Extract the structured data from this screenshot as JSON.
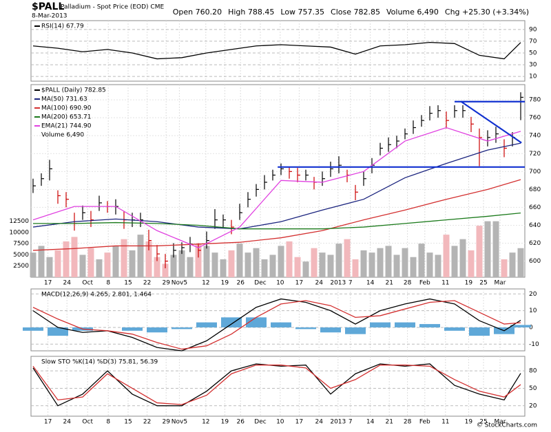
{
  "header": {
    "symbol": "$PALL",
    "name": "Palladium - Spot Price (EOD) CME",
    "date": "8-Mar-2013",
    "stats": [
      "Open 760.20",
      "High 788.45",
      "Low 757.35",
      "Close 782.85",
      "Volume 6,490",
      "Chg +25.30 (+3.34%)"
    ],
    "credit": "© StockCharts.com"
  },
  "xticks": [
    {
      "value": 1.8,
      "label": "17"
    },
    {
      "value": 4.1,
      "label": "24"
    },
    {
      "value": 6.6,
      "label": "Oct"
    },
    {
      "value": 9.1,
      "label": "8"
    },
    {
      "value": 11.5,
      "label": "15"
    },
    {
      "value": 13.8,
      "label": "22"
    },
    {
      "value": 16.1,
      "label": "29"
    },
    {
      "value": 17.7,
      "label": "Nov5"
    },
    {
      "value": 20.9,
      "label": "12"
    },
    {
      "value": 23.2,
      "label": "19"
    },
    {
      "value": 25.1,
      "label": "26"
    },
    {
      "value": 27.5,
      "label": "Dec"
    },
    {
      "value": 29.9,
      "label": "10"
    },
    {
      "value": 32.2,
      "label": "17"
    },
    {
      "value": 34.6,
      "label": "24"
    },
    {
      "value": 36.9,
      "label": "2013"
    },
    {
      "value": 38.4,
      "label": "7"
    },
    {
      "value": 40.8,
      "label": "14"
    },
    {
      "value": 43.1,
      "label": "21"
    },
    {
      "value": 45.3,
      "label": "28"
    },
    {
      "value": 47.4,
      "label": "Feb"
    },
    {
      "value": 49.9,
      "label": "11"
    },
    {
      "value": 52.7,
      "label": "19"
    },
    {
      "value": 54.5,
      "label": "25"
    },
    {
      "value": 56.5,
      "label": "Mar"
    }
  ],
  "chart_data": [
    {
      "type": "line",
      "ylim": [
        2,
        105
      ],
      "yticks": [
        90,
        70,
        50,
        30,
        10
      ],
      "series": [
        {
          "label": "RSI(14) 67.79",
          "color": "#000000",
          "x": [
            0,
            3,
            6,
            9,
            12,
            15,
            18,
            21,
            24,
            27,
            30,
            33,
            36,
            39,
            42,
            45,
            48,
            51,
            54,
            57,
            59
          ],
          "values": [
            62,
            58,
            52,
            56,
            50,
            40,
            42,
            50,
            56,
            62,
            64,
            62,
            60,
            48,
            62,
            64,
            68,
            66,
            46,
            40,
            67.79
          ]
        }
      ]
    },
    {
      "type": "ohlc",
      "ylim": [
        582,
        797
      ],
      "yticks": [
        600,
        620,
        640,
        660,
        680,
        700,
        720,
        740,
        760,
        780
      ],
      "y2lim": [
        0,
        43000
      ],
      "y2ticks": [
        2500,
        5000,
        7500,
        10000,
        12500
      ],
      "label": "$PALL (Daily) 782.85",
      "color": "#000000",
      "down_color": "#cc0000",
      "high": [
        692,
        698,
        713,
        679,
        677,
        654,
        662,
        656,
        673,
        667,
        669,
        656,
        654,
        654,
        635,
        618,
        608,
        620,
        621,
        627,
        620,
        633,
        658,
        652,
        646,
        664,
        677,
        686,
        696,
        702,
        709,
        705,
        704,
        702,
        694,
        700,
        711,
        717,
        702,
        685,
        700,
        715,
        732,
        738,
        740,
        748,
        757,
        763,
        773,
        774,
        767,
        774,
        774,
        761,
        748,
        746,
        750,
        736,
        744,
        788.45
      ],
      "low": [
        676,
        684,
        690,
        664,
        660,
        634,
        646,
        638,
        656,
        654,
        652,
        636,
        638,
        638,
        612,
        600,
        592,
        604,
        608,
        610,
        604,
        614,
        636,
        638,
        630,
        646,
        660,
        672,
        680,
        690,
        696,
        692,
        688,
        690,
        680,
        684,
        694,
        698,
        688,
        668,
        684,
        698,
        718,
        722,
        726,
        736,
        742,
        750,
        757,
        760,
        748,
        760,
        760,
        744,
        706,
        728,
        732,
        716,
        728,
        757.35
      ],
      "close": [
        684,
        692,
        703,
        673,
        669,
        642,
        654,
        646,
        665,
        661,
        661,
        646,
        646,
        646,
        623,
        608,
        600,
        612,
        615,
        619,
        612,
        623,
        646,
        646,
        638,
        654,
        669,
        680,
        688,
        696,
        703,
        700,
        696,
        696,
        688,
        692,
        703,
        707,
        696,
        677,
        692,
        707,
        726,
        730,
        734,
        742,
        749,
        757,
        765,
        768,
        757,
        768,
        768,
        753,
        738,
        738,
        742,
        726,
        738,
        782.85
      ],
      "series": [
        {
          "label": "MA(50) 731.63",
          "color": "#1a237e",
          "x": [
            0,
            5,
            10,
            15,
            20,
            25,
            30,
            35,
            40,
            45,
            50,
            55,
            59
          ],
          "values": [
            638,
            644,
            647,
            644,
            638,
            636,
            644,
            657,
            669,
            693,
            709,
            724,
            731.63
          ]
        },
        {
          "label": "MA(100) 690.90",
          "color": "#d32f2f",
          "x": [
            0,
            5,
            10,
            15,
            20,
            25,
            30,
            35,
            40,
            45,
            50,
            55,
            59
          ],
          "values": [
            612,
            614,
            617,
            617,
            619,
            621,
            626,
            634,
            646,
            657,
            669,
            680,
            690.9
          ]
        },
        {
          "label": "MA(200) 653.71",
          "color": "#1b7a1b",
          "x": [
            0,
            5,
            10,
            15,
            20,
            25,
            30,
            35,
            40,
            45,
            50,
            55,
            59
          ],
          "values": [
            642,
            642,
            643,
            642,
            640,
            636,
            636,
            636,
            638,
            642,
            646,
            650,
            653.71
          ]
        },
        {
          "label": "EMA(21) 744.90",
          "color": "#e040e0",
          "x": [
            0,
            5,
            10,
            15,
            20,
            25,
            30,
            35,
            40,
            45,
            50,
            55,
            59
          ],
          "values": [
            646,
            661,
            661,
            634,
            615,
            638,
            690,
            688,
            700,
            734,
            749,
            734,
            744.9
          ]
        },
        {
          "label": "Volume 6,490",
          "kind": "bar",
          "axis": "y2",
          "color": "#b4b4b4",
          "down_color": "#f2b8bc",
          "values": [
            5500,
            7000,
            4500,
            6000,
            8000,
            9000,
            5000,
            6500,
            4000,
            5500,
            7000,
            8500,
            6000,
            9500,
            8000,
            4500,
            3000,
            5000,
            6000,
            4500,
            7500,
            7000,
            5500,
            4000,
            6000,
            7500,
            5500,
            6500,
            4000,
            5000,
            7000,
            8000,
            4500,
            3500,
            6500,
            5500,
            5000,
            7500,
            8500,
            4000,
            6000,
            5500,
            6500,
            7000,
            5000,
            6500,
            4500,
            7500,
            5500,
            5000,
            9500,
            7000,
            8500,
            6000,
            11500,
            12500,
            12500,
            4000,
            5500,
            6490
          ]
        }
      ],
      "trend_lines": {
        "color": "#1030d0",
        "lines": [
          {
            "x": [
              29.6,
              59.5
            ],
            "values": [
              705,
              705
            ]
          },
          {
            "x": [
              51,
              59.5
            ],
            "values": [
              778,
              778
            ]
          },
          {
            "x": [
              51.8,
              59.1
            ],
            "values": [
              778,
              732
            ]
          }
        ]
      }
    },
    {
      "type": "line",
      "ylim": [
        -14,
        23
      ],
      "yticks": [
        20,
        10,
        0,
        -10
      ],
      "legend": "MACD(12,26,9) 4.265, 2.801, 1.464",
      "series": [
        {
          "kind": "bar",
          "color": "#5fa8d8",
          "x": [
            0,
            3,
            6,
            9,
            12,
            15,
            18,
            21,
            24,
            27,
            30,
            33,
            36,
            39,
            42,
            45,
            48,
            51,
            54,
            57,
            59
          ],
          "values": [
            -2,
            -5,
            -2,
            0,
            -2,
            -3,
            -1,
            3,
            6,
            6,
            3,
            -1,
            -3,
            -4,
            3,
            3,
            2,
            -2,
            -5,
            -4,
            1.464
          ]
        },
        {
          "color": "#000000",
          "x": [
            0,
            3,
            6,
            9,
            12,
            15,
            18,
            21,
            24,
            27,
            30,
            33,
            36,
            39,
            42,
            45,
            48,
            51,
            54,
            57,
            59
          ],
          "values": [
            10,
            0,
            -3,
            -2,
            -6,
            -12,
            -14,
            -8,
            2,
            12,
            17,
            15,
            10,
            2,
            10,
            14,
            17,
            14,
            4,
            -2,
            4.265
          ]
        },
        {
          "color": "#d32f2f",
          "x": [
            0,
            3,
            6,
            9,
            12,
            15,
            18,
            21,
            24,
            27,
            30,
            33,
            36,
            39,
            42,
            45,
            48,
            51,
            54,
            57,
            59
          ],
          "values": [
            12,
            5,
            -1,
            -2,
            -4,
            -9,
            -13,
            -11,
            -4,
            6,
            14,
            16,
            13,
            6,
            7,
            11,
            15,
            16,
            9,
            2,
            2.801
          ]
        }
      ]
    },
    {
      "type": "line",
      "ylim": [
        2,
        105
      ],
      "yticks": [
        80,
        50,
        20
      ],
      "legend": "Slow STO %K(14) %D(3) 75.81, 56.39",
      "series": [
        {
          "color": "#000000",
          "x": [
            0,
            3,
            6,
            9,
            12,
            15,
            18,
            21,
            24,
            27,
            30,
            33,
            36,
            39,
            42,
            45,
            48,
            51,
            54,
            57,
            59
          ],
          "values": [
            85,
            20,
            40,
            80,
            40,
            20,
            20,
            45,
            80,
            92,
            88,
            90,
            40,
            75,
            92,
            88,
            92,
            55,
            40,
            30,
            75.81
          ]
        },
        {
          "color": "#d32f2f",
          "x": [
            0,
            3,
            6,
            9,
            12,
            15,
            18,
            21,
            24,
            27,
            30,
            33,
            36,
            39,
            42,
            45,
            48,
            51,
            54,
            57,
            59
          ],
          "values": [
            88,
            30,
            35,
            75,
            50,
            25,
            22,
            38,
            75,
            90,
            90,
            85,
            50,
            65,
            90,
            90,
            88,
            65,
            45,
            35,
            56.39
          ]
        }
      ]
    }
  ]
}
